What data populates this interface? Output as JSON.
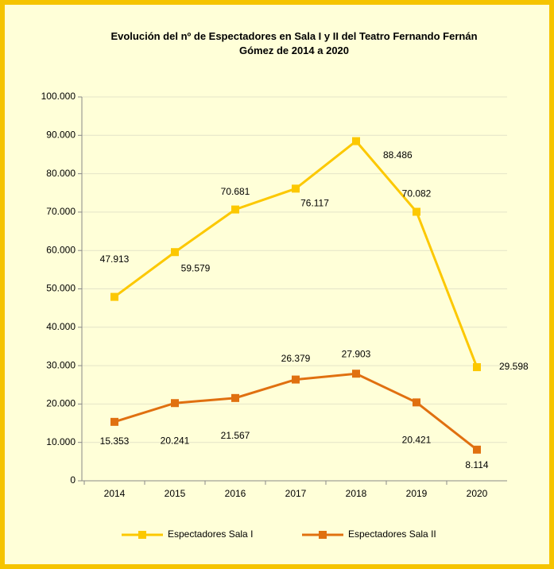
{
  "chart_data": {
    "type": "line",
    "title": "Evolución del nº de Espectadores en Sala I y II del Teatro Fernando Fernán Gómez de 2014 a 2020",
    "categories": [
      "2014",
      "2015",
      "2016",
      "2017",
      "2018",
      "2019",
      "2020"
    ],
    "series": [
      {
        "name": "Espectadores Sala I",
        "color": "#fcc800",
        "values": [
          47913,
          59579,
          70681,
          76117,
          88486,
          70082,
          29598
        ],
        "value_labels": [
          "47.913",
          "59.579",
          "70.681",
          "76.117",
          "88.486",
          "70.082",
          "29.598"
        ]
      },
      {
        "name": "Espectadores Sala II",
        "color": "#e07010",
        "values": [
          15353,
          20241,
          21567,
          26379,
          27903,
          20421,
          8114
        ],
        "value_labels": [
          "15.353",
          "20.241",
          "21.567",
          "26.379",
          "27.903",
          "20.421",
          "8.114"
        ]
      }
    ],
    "ylim": [
      0,
      100000
    ],
    "yticks": [
      0,
      {
        "value": 10000,
        "label": "10.000"
      },
      {
        "value": 20000,
        "label": "20.000"
      },
      {
        "value": 30000,
        "label": "30.000"
      },
      {
        "value": 40000,
        "label": "40.000"
      },
      {
        "value": 50000,
        "label": "50.000"
      },
      {
        "value": 60000,
        "label": "60.000"
      },
      {
        "value": 70000,
        "label": "70.000"
      },
      {
        "value": 80000,
        "label": "80.000"
      },
      {
        "value": 90000,
        "label": "90.000"
      },
      {
        "value": 100000,
        "label": "100.000"
      }
    ],
    "grid": true,
    "legend": "bottom"
  }
}
